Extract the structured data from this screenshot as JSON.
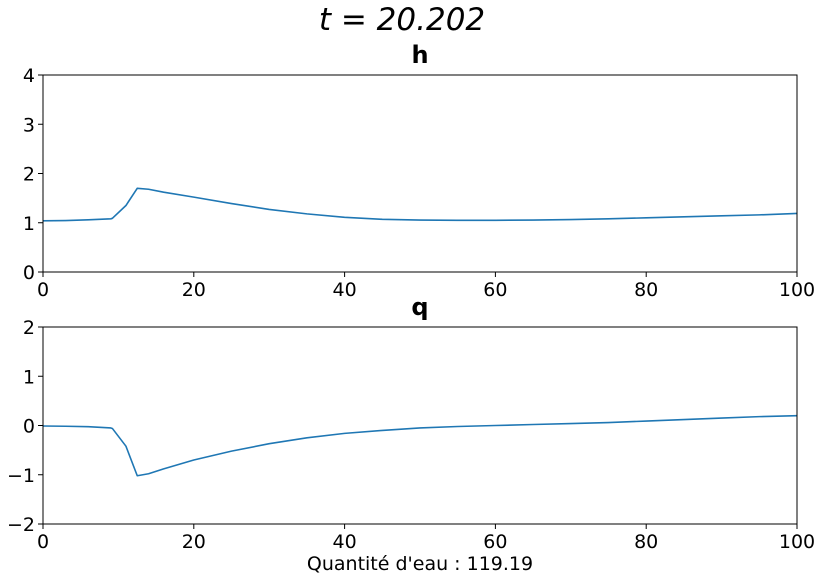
{
  "figure": {
    "suptitle": "t = 20.202"
  },
  "colors": {
    "line": "#1f77b4",
    "axes": "#000000",
    "background": "#ffffff"
  },
  "chart_data": [
    {
      "type": "line",
      "title": "h",
      "xlabel": "",
      "ylabel": "",
      "xlim": [
        0,
        100
      ],
      "ylim": [
        0,
        4
      ],
      "xticks": [
        0,
        20,
        40,
        60,
        80,
        100
      ],
      "yticks": [
        0,
        1,
        2,
        3,
        4
      ],
      "grid": false,
      "series": [
        {
          "x": [
            0,
            3,
            6,
            9,
            9.2,
            11,
            12.5,
            14,
            16,
            20,
            25,
            30,
            35,
            40,
            45,
            50,
            55,
            60,
            65,
            70,
            75,
            80,
            85,
            90,
            95,
            100
          ],
          "y": [
            1.04,
            1.045,
            1.06,
            1.08,
            1.09,
            1.35,
            1.7,
            1.68,
            1.62,
            1.52,
            1.39,
            1.27,
            1.18,
            1.11,
            1.07,
            1.055,
            1.05,
            1.05,
            1.055,
            1.065,
            1.08,
            1.1,
            1.12,
            1.14,
            1.16,
            1.19
          ]
        }
      ]
    },
    {
      "type": "line",
      "title": "q",
      "xlabel": "Quantité d'eau : 119.19",
      "ylabel": "",
      "xlim": [
        0,
        100
      ],
      "ylim": [
        -2,
        2
      ],
      "xticks": [
        0,
        20,
        40,
        60,
        80,
        100
      ],
      "yticks": [
        -2,
        -1,
        0,
        1,
        2
      ],
      "grid": false,
      "series": [
        {
          "x": [
            0,
            3,
            6,
            9,
            9.2,
            11,
            12.5,
            14,
            16,
            20,
            25,
            30,
            35,
            40,
            45,
            50,
            55,
            60,
            65,
            70,
            75,
            80,
            85,
            90,
            95,
            100
          ],
          "y": [
            -0.01,
            -0.015,
            -0.025,
            -0.05,
            -0.06,
            -0.42,
            -1.02,
            -0.98,
            -0.88,
            -0.7,
            -0.52,
            -0.37,
            -0.25,
            -0.16,
            -0.1,
            -0.05,
            -0.02,
            0.0,
            0.02,
            0.04,
            0.06,
            0.09,
            0.12,
            0.15,
            0.18,
            0.2
          ]
        }
      ]
    }
  ]
}
